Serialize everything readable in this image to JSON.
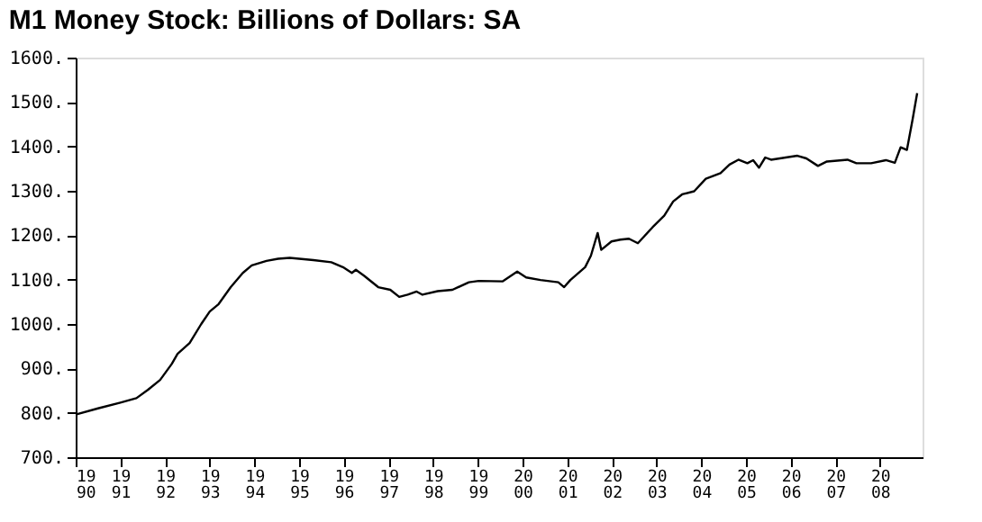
{
  "chart_data": {
    "type": "line",
    "title": "M1 Money Stock: Billions of Dollars: SA",
    "x": [
      1990.0,
      1990.5,
      1991.0,
      1991.36,
      1991.62,
      1991.89,
      1992.15,
      1992.28,
      1992.55,
      1992.81,
      1993.0,
      1993.2,
      1993.47,
      1993.74,
      1993.94,
      1994.27,
      1994.53,
      1994.79,
      1995.32,
      1995.72,
      1995.98,
      1996.18,
      1996.27,
      1996.45,
      1996.77,
      1997.04,
      1997.24,
      1997.43,
      1997.63,
      1997.76,
      1998.1,
      1998.43,
      1998.8,
      1999.02,
      1999.55,
      1999.88,
      2000.08,
      2000.4,
      2000.8,
      2000.93,
      2001.07,
      2001.4,
      2001.53,
      2001.68,
      2001.76,
      2001.99,
      2002.19,
      2002.38,
      2002.58,
      2002.91,
      2003.17,
      2003.37,
      2003.57,
      2003.84,
      2004.1,
      2004.43,
      2004.63,
      2004.83,
      2005.03,
      2005.16,
      2005.29,
      2005.43,
      2005.56,
      2006.15,
      2006.35,
      2006.61,
      2006.81,
      2007.27,
      2007.47,
      2007.8,
      2008.13,
      2008.33,
      2008.46,
      2008.6,
      2008.73,
      2008.83
    ],
    "series": [
      {
        "color": "#000000",
        "values": [
          796,
          810,
          823,
          833,
          852,
          874,
          910,
          933,
          957,
          1000,
          1028,
          1045,
          1083,
          1115,
          1132,
          1142,
          1147,
          1149,
          1144,
          1139,
          1128,
          1115,
          1122,
          1109,
          1083,
          1077,
          1061,
          1066,
          1073,
          1066,
          1074,
          1077,
          1094,
          1097,
          1096,
          1118,
          1105,
          1099,
          1094,
          1083,
          1099,
          1128,
          1154,
          1205,
          1167,
          1186,
          1190,
          1192,
          1182,
          1218,
          1244,
          1276,
          1292,
          1299,
          1327,
          1340,
          1359,
          1370,
          1362,
          1369,
          1352,
          1375,
          1370,
          1379,
          1373,
          1356,
          1366,
          1370,
          1362,
          1362,
          1369,
          1363,
          1398,
          1392,
          1462,
          1520
        ]
      }
    ],
    "xlim": [
      1990,
      2008.95
    ],
    "xticks": [
      1990,
      1991,
      1992,
      1993,
      1994,
      1995,
      1996,
      1997,
      1998,
      1999,
      2000,
      2001,
      2002,
      2003,
      2004,
      2005,
      2006,
      2007,
      2008
    ],
    "ylim": [
      700,
      1600
    ],
    "yticks": [
      {
        "value": 700,
        "label": "700."
      },
      {
        "value": 800,
        "label": "800."
      },
      {
        "value": 900,
        "label": "900."
      },
      {
        "value": 1000,
        "label": "1000."
      },
      {
        "value": 1100,
        "label": "1100."
      },
      {
        "value": 1200,
        "label": "1200."
      },
      {
        "value": 1300,
        "label": "1300."
      },
      {
        "value": 1400,
        "label": "1400."
      },
      {
        "value": 1500,
        "label": "1500."
      },
      {
        "value": 1600,
        "label": "1600."
      }
    ],
    "grid": false,
    "legend": false,
    "marker": "none",
    "line_style": "solid"
  }
}
